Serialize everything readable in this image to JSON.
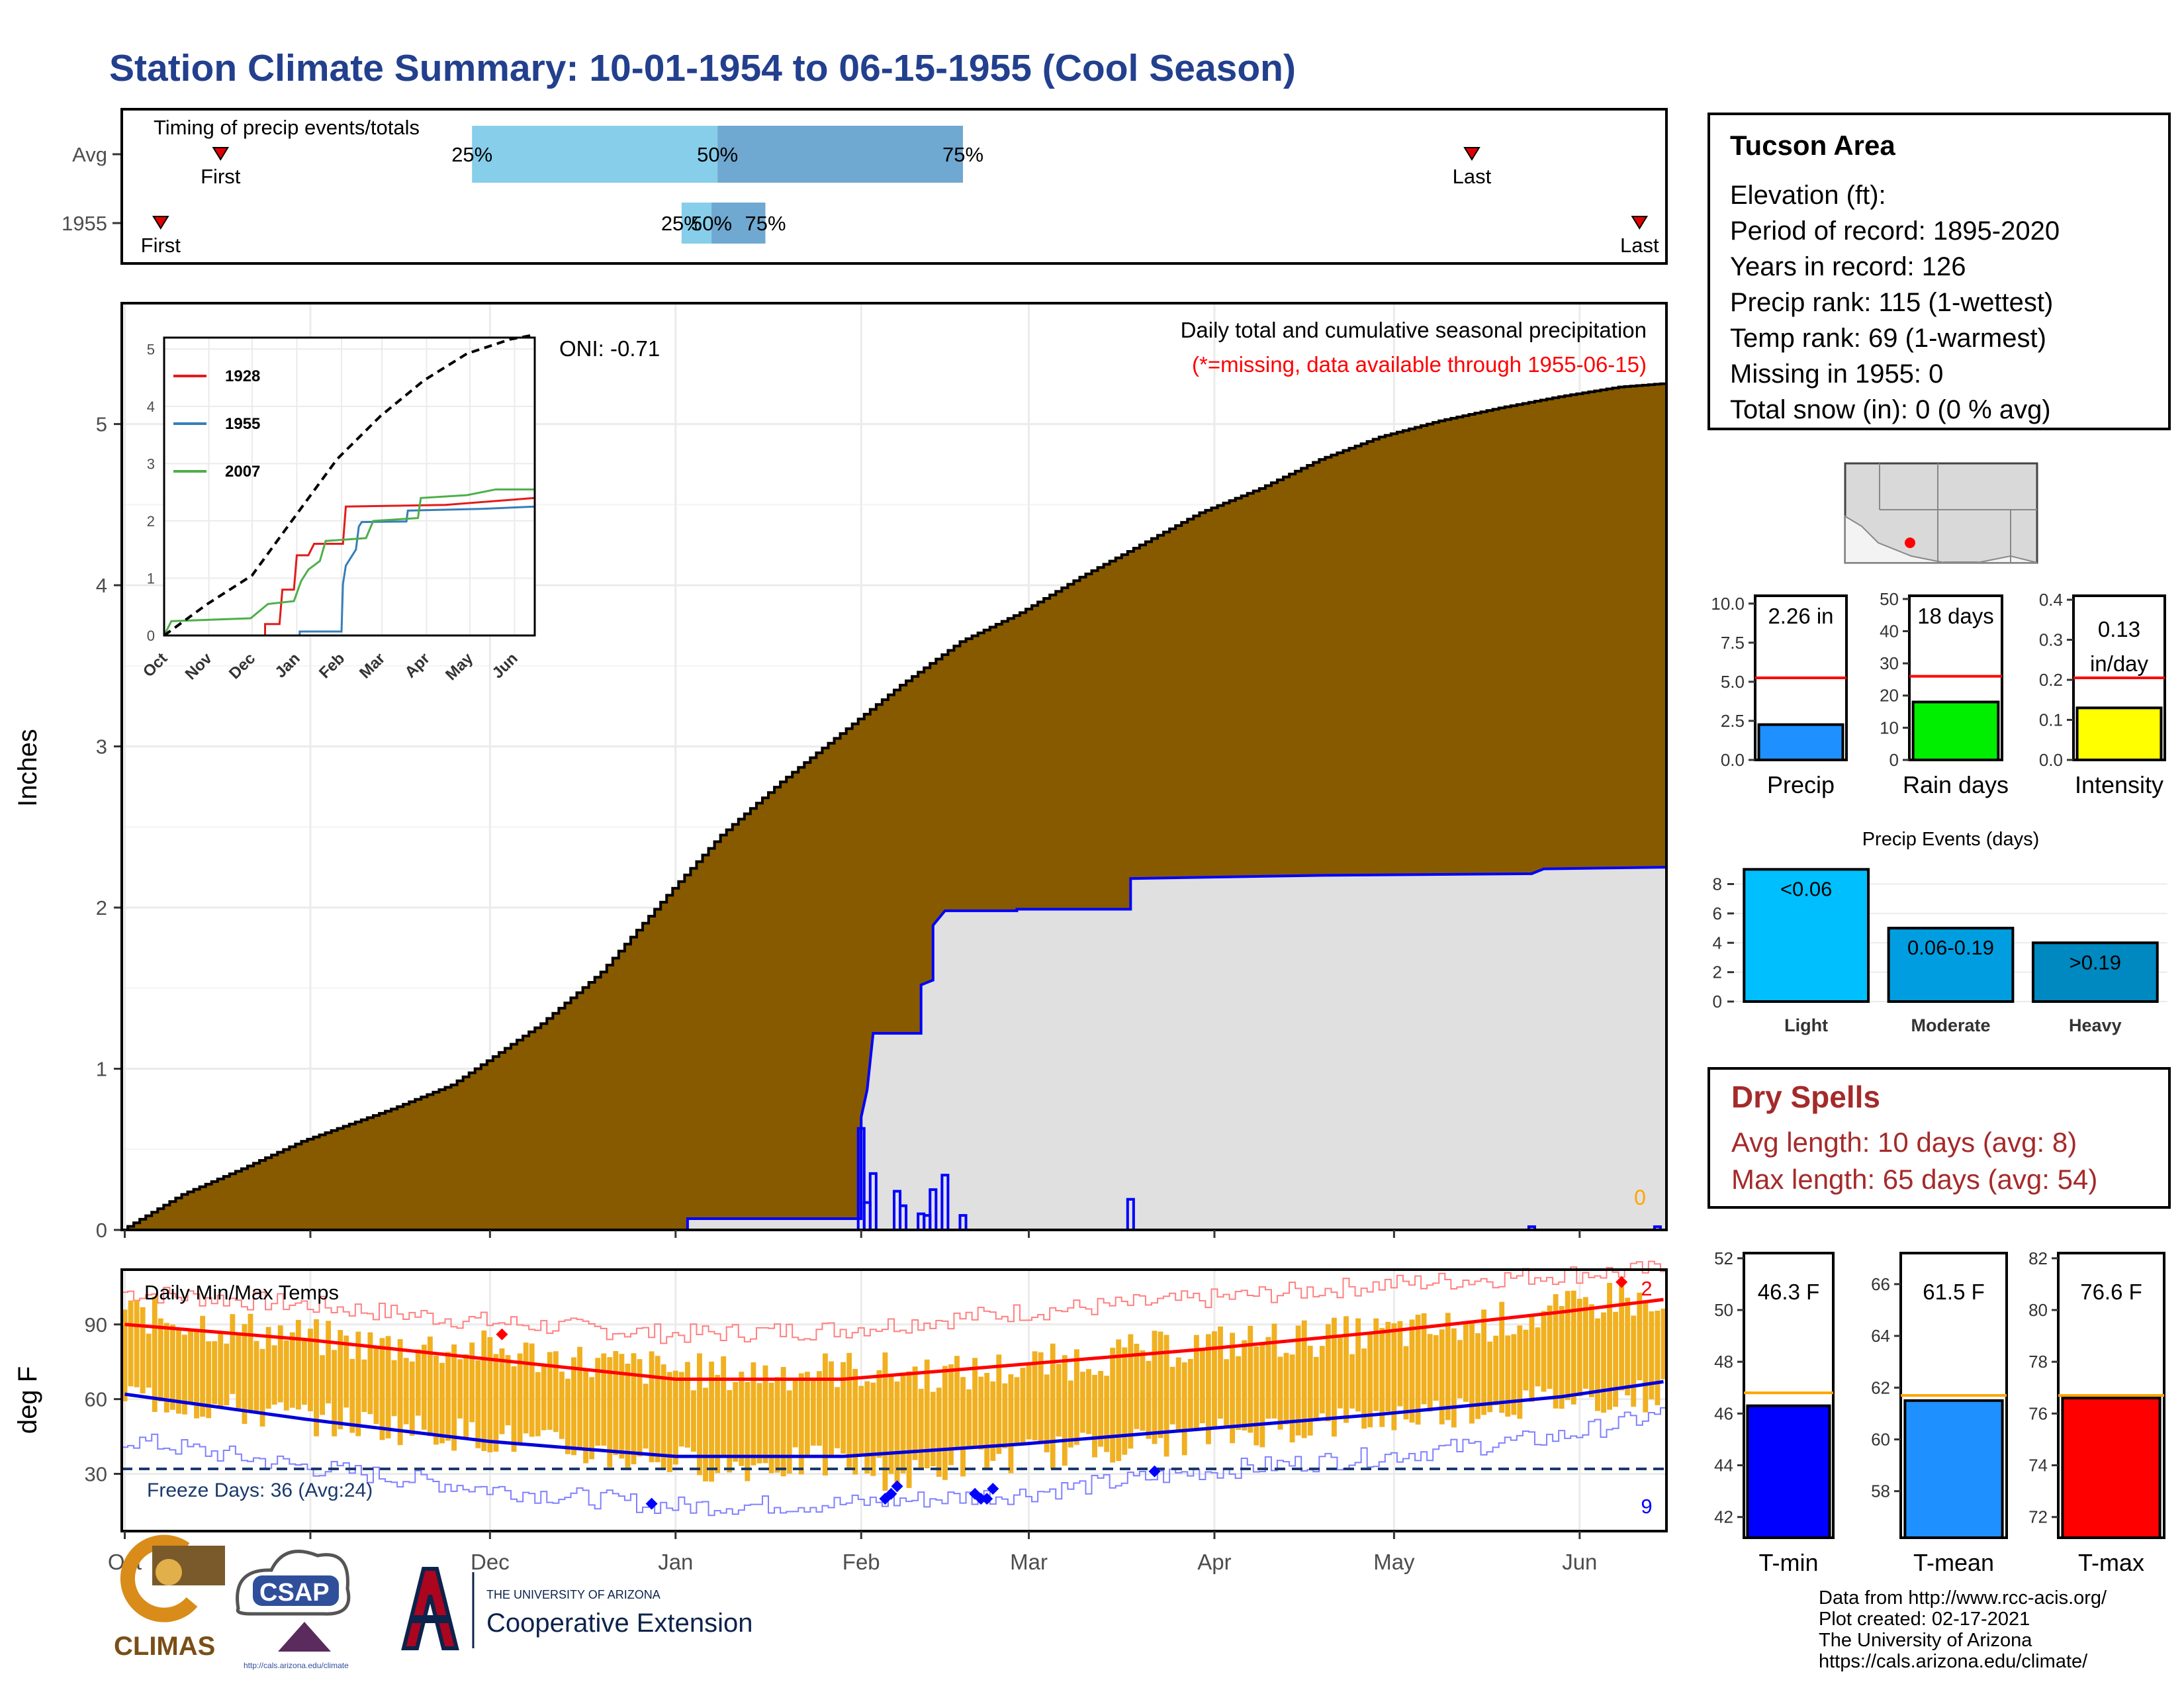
{
  "title": "Station Climate Summary: 10-01-1954 to 06-15-1955 (Cool Season)",
  "timing": {
    "title": "Timing of precip events/totals",
    "rows": [
      {
        "label": "Avg",
        "first_label": "First",
        "last_label": "Last",
        "first": "1954-10-17",
        "last": "1955-05-14",
        "p25": "1954-11-28",
        "p50": "1955-01-08",
        "p75": "1955-02-18",
        "p25_label": "25%",
        "p50_label": "50%",
        "p75_label": "75%"
      },
      {
        "label": "1955",
        "first_label": "First",
        "last_label": "Last",
        "first": "1954-10-07",
        "last": "1955-06-11",
        "p25": "1955-01-02",
        "p50": "1955-01-07",
        "p75": "1955-01-16",
        "p25_label": "25%",
        "p50_label": "50%",
        "p75_label": "75%"
      }
    ],
    "colors": {
      "light": "#87ceeb",
      "dark": "#6fa8d0",
      "marker": "#e00000"
    }
  },
  "station": {
    "name": "Tucson Area",
    "lines": [
      "Elevation (ft):",
      "Period of record: 1895-2020",
      "Years in record: 126",
      "Precip rank: 115 (1-wettest)",
      "Temp rank: 69 (1-warmest)",
      "Missing in 1955: 0",
      "Total snow (in): 0 (0 % avg)"
    ]
  },
  "dry_spells": {
    "title": "Dry Spells",
    "avg_line": "Avg length: 10 days (avg: 8)",
    "max_line": "Max length: 65 days (avg: 54)"
  },
  "credits": [
    "Data from http://www.rcc-acis.org/",
    "Plot created: 02-17-2021",
    "The University of Arizona",
    "https://cals.arizona.edu/climate/"
  ],
  "logos": {
    "climas": "CLIMAS",
    "csap": "CSAP",
    "csap_url": "http://cals.arizona.edu/climate",
    "ua_small": "THE UNIVERSITY OF ARIZONA",
    "ua_big": "Cooperative Extension"
  },
  "months": [
    "Oct",
    "Nov",
    "Dec",
    "Jan",
    "Feb",
    "Mar",
    "Apr",
    "May",
    "Jun"
  ],
  "chart_data": [
    {
      "id": "precip",
      "type": "area",
      "title": "Daily total and cumulative seasonal precipitation",
      "subtitle": "(*=missing, data available through 1955-06-15)",
      "ylabel": "Inches",
      "ylim": [
        0,
        5.75
      ],
      "yticks": [
        0,
        1,
        2,
        3,
        4,
        5
      ],
      "oni": "ONI: -0.71",
      "missing_count": "0",
      "avg_cumulative": [
        [
          0,
          0
        ],
        [
          10,
          0.22
        ],
        [
          20,
          0.38
        ],
        [
          30,
          0.55
        ],
        [
          45,
          0.75
        ],
        [
          55,
          0.9
        ],
        [
          61,
          1.05
        ],
        [
          70,
          1.28
        ],
        [
          80,
          1.6
        ],
        [
          92,
          2.12
        ],
        [
          100,
          2.45
        ],
        [
          110,
          2.78
        ],
        [
          120,
          3.08
        ],
        [
          130,
          3.38
        ],
        [
          140,
          3.65
        ],
        [
          150,
          3.83
        ],
        [
          160,
          4.05
        ],
        [
          170,
          4.25
        ],
        [
          180,
          4.45
        ],
        [
          190,
          4.6
        ],
        [
          200,
          4.78
        ],
        [
          210,
          4.92
        ],
        [
          220,
          5.02
        ],
        [
          230,
          5.1
        ],
        [
          240,
          5.17
        ],
        [
          250,
          5.23
        ],
        [
          257,
          5.25
        ]
      ],
      "season_cumulative": [
        [
          0,
          0
        ],
        [
          94,
          0.0
        ],
        [
          94,
          0.07
        ],
        [
          123,
          0.07
        ],
        [
          123,
          0.7
        ],
        [
          124,
          0.87
        ],
        [
          125,
          1.22
        ],
        [
          133,
          1.22
        ],
        [
          133,
          1.52
        ],
        [
          135,
          1.55
        ],
        [
          135,
          1.89
        ],
        [
          137,
          1.98
        ],
        [
          149,
          1.98
        ],
        [
          149,
          1.99
        ],
        [
          168,
          1.99
        ],
        [
          168,
          2.18
        ],
        [
          200,
          2.2
        ],
        [
          235,
          2.21
        ],
        [
          237,
          2.24
        ],
        [
          257,
          2.25
        ]
      ],
      "daily": [
        [
          123,
          0.63
        ],
        [
          124,
          0.17
        ],
        [
          125,
          0.35
        ],
        [
          129,
          0.24
        ],
        [
          130,
          0.15
        ],
        [
          133,
          0.1
        ],
        [
          134,
          0.09
        ],
        [
          135,
          0.25
        ],
        [
          137,
          0.34
        ],
        [
          140,
          0.09
        ],
        [
          168,
          0.19
        ],
        [
          235,
          0.02
        ],
        [
          256,
          0.02
        ]
      ],
      "colors": {
        "avg": "#875a00",
        "season": "#e0e0e0",
        "line": "#0000ff"
      }
    },
    {
      "id": "inset",
      "type": "line",
      "xlim": [
        0,
        257
      ],
      "ylim": [
        0,
        5.2
      ],
      "yticks": [
        0,
        1,
        2,
        3,
        4,
        5
      ],
      "series": [
        {
          "name": "1928",
          "color": "#e41a1c",
          "values": [
            [
              0,
              0
            ],
            [
              70,
              0
            ],
            [
              70,
              0.2
            ],
            [
              80,
              0.2
            ],
            [
              82,
              0.8
            ],
            [
              90,
              0.8
            ],
            [
              92,
              1.4
            ],
            [
              100,
              1.4
            ],
            [
              104,
              1.6
            ],
            [
              124,
              1.6
            ],
            [
              126,
              2.25
            ],
            [
              195,
              2.28
            ],
            [
              257,
              2.4
            ]
          ]
        },
        {
          "name": "1955",
          "color": "#377eb8",
          "values": [
            [
              0,
              0
            ],
            [
              94,
              0
            ],
            [
              94,
              0.07
            ],
            [
              123,
              0.07
            ],
            [
              124,
              0.9
            ],
            [
              126,
              1.22
            ],
            [
              133,
              1.5
            ],
            [
              135,
              1.9
            ],
            [
              137,
              1.98
            ],
            [
              168,
              1.99
            ],
            [
              169,
              2.18
            ],
            [
              220,
              2.21
            ],
            [
              257,
              2.25
            ]
          ]
        },
        {
          "name": "2007",
          "color": "#4daf4a",
          "values": [
            [
              0,
              0
            ],
            [
              5,
              0.25
            ],
            [
              60,
              0.3
            ],
            [
              72,
              0.55
            ],
            [
              90,
              0.6
            ],
            [
              95,
              0.95
            ],
            [
              100,
              1.15
            ],
            [
              108,
              1.3
            ],
            [
              112,
              1.65
            ],
            [
              140,
              1.7
            ],
            [
              145,
              2.0
            ],
            [
              176,
              2.05
            ],
            [
              178,
              2.4
            ],
            [
              210,
              2.45
            ],
            [
              230,
              2.55
            ],
            [
              257,
              2.55
            ]
          ]
        },
        {
          "name": "Avg",
          "color": "#000000",
          "dashed": true,
          "values": [
            [
              0,
              0
            ],
            [
              30,
              0.55
            ],
            [
              61,
              1.05
            ],
            [
              92,
              2.12
            ],
            [
              120,
              3.08
            ],
            [
              150,
              3.83
            ],
            [
              180,
              4.45
            ],
            [
              210,
              4.92
            ],
            [
              240,
              5.17
            ],
            [
              257,
              5.25
            ]
          ]
        }
      ]
    },
    {
      "id": "bars_precip",
      "type": "bar",
      "xlabel": "Precip",
      "value": 2.26,
      "avg": 5.25,
      "label": "2.26 in",
      "ylim": [
        0,
        10.5
      ],
      "yticks": [
        0,
        2.5,
        5.0,
        7.5,
        10.0
      ],
      "ytick_labels": [
        "0.0",
        "2.5",
        "5.0",
        "7.5",
        "10.0"
      ],
      "color": "#1e90ff"
    },
    {
      "id": "bars_raindays",
      "type": "bar",
      "xlabel": "Rain days",
      "value": 18,
      "avg": 26,
      "label": "18 days",
      "ylim": [
        0,
        51
      ],
      "yticks": [
        0,
        10,
        20,
        30,
        40,
        50
      ],
      "ytick_labels": [
        "0",
        "10",
        "20",
        "30",
        "40",
        "50"
      ],
      "color": "#00ee00"
    },
    {
      "id": "bars_intensity",
      "type": "bar",
      "xlabel": "Intensity",
      "value": 0.13,
      "avg": 0.205,
      "label": "0.13",
      "label2": "in/day",
      "ylim": [
        0,
        0.41
      ],
      "yticks": [
        0,
        0.1,
        0.2,
        0.3,
        0.4
      ],
      "ytick_labels": [
        "0.0",
        "0.1",
        "0.2",
        "0.3",
        "0.4"
      ],
      "color": "#ffff00"
    },
    {
      "id": "events",
      "type": "bar",
      "title": "Precip Events (days)",
      "categories": [
        "Light",
        "Moderate",
        "Heavy"
      ],
      "values": [
        9,
        5,
        4
      ],
      "labels": [
        "<0.06",
        "0.06-0.19",
        ">0.19"
      ],
      "ylim": [
        0,
        9.6
      ],
      "yticks": [
        0,
        2,
        4,
        6,
        8
      ],
      "colors": [
        "#00bfff",
        "#009ee0",
        "#0088c0"
      ]
    },
    {
      "id": "temps",
      "type": "bar",
      "title": "Daily Min/Max Temps",
      "ylabel": "deg F",
      "ylim": [
        7,
        112
      ],
      "yticks": [
        30,
        60,
        90
      ],
      "freeze_label": "Freeze Days: 36 (Avg:24)",
      "freeze_temp": 32,
      "record_high_count": "2",
      "record_low_count": "9",
      "avg_max": [
        [
          0,
          90
        ],
        [
          30,
          84
        ],
        [
          61,
          76
        ],
        [
          92,
          68
        ],
        [
          120,
          68
        ],
        [
          150,
          74
        ],
        [
          180,
          80
        ],
        [
          210,
          87
        ],
        [
          240,
          95
        ],
        [
          257,
          100
        ]
      ],
      "avg_min": [
        [
          0,
          62
        ],
        [
          30,
          52
        ],
        [
          61,
          43
        ],
        [
          92,
          37
        ],
        [
          120,
          37
        ],
        [
          150,
          42
        ],
        [
          180,
          48
        ],
        [
          210,
          54
        ],
        [
          240,
          61
        ],
        [
          257,
          67
        ]
      ],
      "rec_max": [
        [
          0,
          103
        ],
        [
          30,
          98
        ],
        [
          61,
          91
        ],
        [
          92,
          86
        ],
        [
          120,
          88
        ],
        [
          150,
          95
        ],
        [
          180,
          100
        ],
        [
          210,
          106
        ],
        [
          240,
          110
        ],
        [
          257,
          112
        ]
      ],
      "rec_min": [
        [
          0,
          44
        ],
        [
          30,
          33
        ],
        [
          61,
          24
        ],
        [
          92,
          17
        ],
        [
          120,
          18
        ],
        [
          150,
          22
        ],
        [
          180,
          31
        ],
        [
          210,
          37
        ],
        [
          240,
          45
        ],
        [
          257,
          54
        ]
      ],
      "daily_max_anchors": [
        [
          0,
          95
        ],
        [
          20,
          88
        ],
        [
          40,
          82
        ],
        [
          60,
          80
        ],
        [
          80,
          74
        ],
        [
          100,
          70
        ],
        [
          120,
          72
        ],
        [
          140,
          70
        ],
        [
          160,
          76
        ],
        [
          180,
          82
        ],
        [
          200,
          85
        ],
        [
          220,
          88
        ],
        [
          240,
          95
        ],
        [
          250,
          102
        ],
        [
          257,
          93
        ]
      ],
      "daily_min_anchors": [
        [
          0,
          62
        ],
        [
          20,
          55
        ],
        [
          40,
          50
        ],
        [
          60,
          45
        ],
        [
          80,
          38
        ],
        [
          100,
          33
        ],
        [
          120,
          35
        ],
        [
          130,
          28
        ],
        [
          140,
          35
        ],
        [
          160,
          40
        ],
        [
          180,
          45
        ],
        [
          200,
          50
        ],
        [
          220,
          55
        ],
        [
          240,
          60
        ],
        [
          257,
          62
        ]
      ],
      "record_highs": [
        [
          63,
          86
        ],
        [
          250,
          107
        ]
      ],
      "record_lows": [
        [
          88,
          18
        ],
        [
          127,
          20
        ],
        [
          128,
          22
        ],
        [
          129,
          25
        ],
        [
          142,
          22
        ],
        [
          143,
          20
        ],
        [
          144,
          20
        ],
        [
          145,
          24
        ],
        [
          172,
          31
        ]
      ],
      "colors": {
        "bar": "#f0b020",
        "avg_max": "#ff0000",
        "avg_min": "#0000dd",
        "rec_max": "#ff8080",
        "rec_min": "#8080ff",
        "freeze": "#1a3a6e"
      }
    },
    {
      "id": "bars_tmin",
      "type": "bar",
      "xlabel": "T-min",
      "value": 46.3,
      "avg": 46.8,
      "label": "46.3 F",
      "ylim": [
        41.2,
        52.2
      ],
      "yticks": [
        42,
        44,
        46,
        48,
        50,
        52
      ],
      "ytick_labels": [
        "42",
        "44",
        "46",
        "48",
        "50",
        "52"
      ],
      "color": "#0000ff"
    },
    {
      "id": "bars_tmean",
      "type": "bar",
      "xlabel": "T-mean",
      "value": 61.5,
      "avg": 61.7,
      "label": "61.5 F",
      "ylim": [
        56.2,
        67.2
      ],
      "yticks": [
        58,
        60,
        62,
        64,
        66
      ],
      "ytick_labels": [
        "58",
        "60",
        "62",
        "64",
        "66"
      ],
      "color": "#1e90ff"
    },
    {
      "id": "bars_tmax",
      "type": "bar",
      "xlabel": "T-max",
      "value": 76.6,
      "avg": 76.7,
      "label": "76.6 F",
      "ylim": [
        71.2,
        82.2
      ],
      "yticks": [
        72,
        74,
        76,
        78,
        80,
        82
      ],
      "ytick_labels": [
        "72",
        "74",
        "76",
        "78",
        "80",
        "82"
      ],
      "color": "#ff0000"
    }
  ]
}
